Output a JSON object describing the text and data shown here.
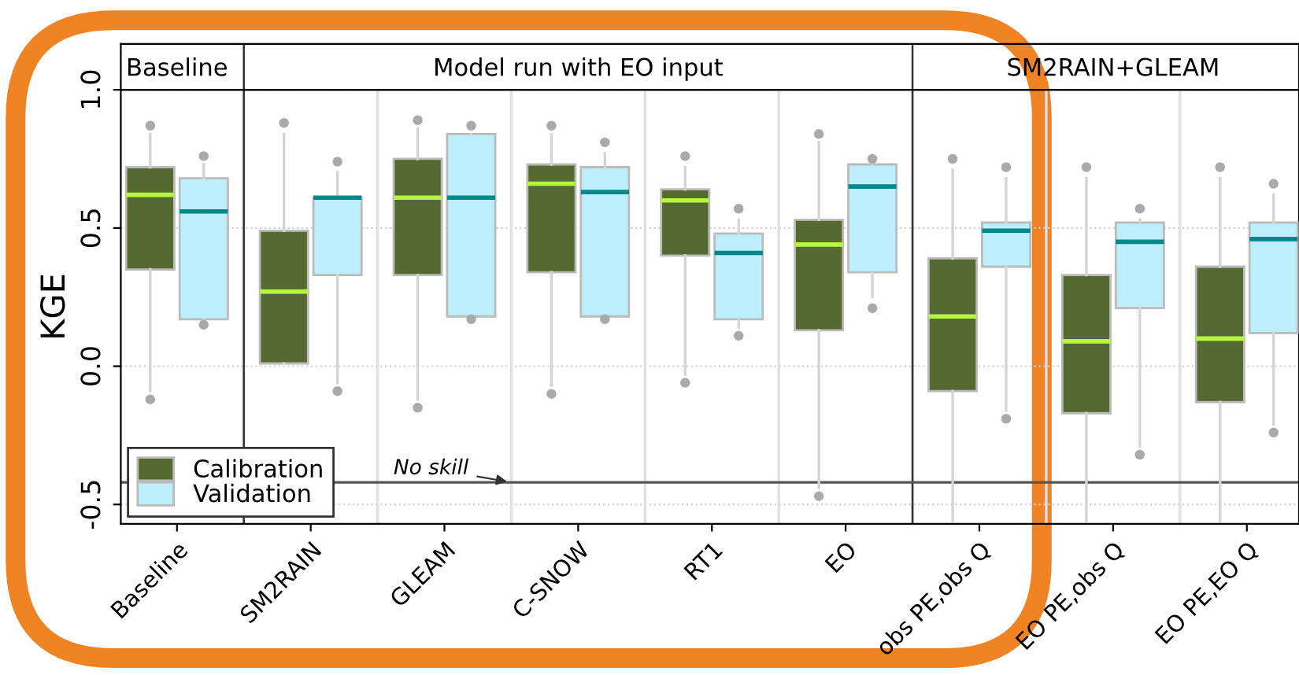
{
  "chart_data": {
    "type": "box",
    "ylabel": "KGE",
    "categories": [
      "Baseline",
      "SM2RAIN",
      "GLEAM",
      "C-SNOW",
      "RT1",
      "EO",
      "obs PE,obs Q",
      "EO PE,obs Q",
      "EO PE,EO Q"
    ],
    "series": [
      {
        "name": "Calibration",
        "color": "#546a30",
        "boxes": [
          {
            "low": -0.09,
            "q1": 0.35,
            "median": 0.62,
            "q3": 0.72,
            "high": 0.84,
            "outliers": [
              -0.12,
              0.87
            ]
          },
          {
            "low": null,
            "q1": 0.01,
            "median": 0.27,
            "q3": 0.49,
            "high": 0.84,
            "outliers": [
              0.88
            ]
          },
          {
            "low": -0.12,
            "q1": 0.33,
            "median": 0.61,
            "q3": 0.75,
            "high": 0.86,
            "outliers": [
              -0.15,
              0.89
            ]
          },
          {
            "low": -0.07,
            "q1": 0.34,
            "median": 0.66,
            "q3": 0.73,
            "high": 0.84,
            "outliers": [
              -0.1,
              0.87
            ]
          },
          {
            "low": -0.03,
            "q1": 0.4,
            "median": 0.6,
            "q3": 0.64,
            "high": 0.72,
            "outliers": [
              -0.06,
              0.76
            ]
          },
          {
            "low": -0.44,
            "q1": 0.13,
            "median": 0.44,
            "q3": 0.53,
            "high": 0.81,
            "outliers": [
              -0.47,
              0.84
            ]
          },
          {
            "low": -0.56,
            "q1": -0.09,
            "median": 0.18,
            "q3": 0.39,
            "high": 0.71,
            "outliers": [
              0.75
            ]
          },
          {
            "low": -0.56,
            "q1": -0.17,
            "median": 0.09,
            "q3": 0.33,
            "high": 0.68,
            "outliers": [
              0.72
            ]
          },
          {
            "low": -0.56,
            "q1": -0.13,
            "median": 0.1,
            "q3": 0.36,
            "high": 0.68,
            "outliers": [
              0.72
            ]
          }
        ]
      },
      {
        "name": "Validation",
        "color": "#bdeefb",
        "boxes": [
          {
            "low": 0.17,
            "q1": 0.17,
            "median": 0.56,
            "q3": 0.68,
            "high": 0.73,
            "outliers": [
              0.15,
              0.76
            ]
          },
          {
            "low": -0.06,
            "q1": 0.33,
            "median": 0.61,
            "q3": 0.61,
            "high": 0.7,
            "outliers": [
              -0.09,
              0.74
            ]
          },
          {
            "low": 0.18,
            "q1": 0.18,
            "median": 0.61,
            "q3": 0.84,
            "high": 0.84,
            "outliers": [
              0.17,
              0.87
            ]
          },
          {
            "low": 0.18,
            "q1": 0.18,
            "median": 0.63,
            "q3": 0.72,
            "high": 0.77,
            "outliers": [
              0.17,
              0.81
            ]
          },
          {
            "low": 0.14,
            "q1": 0.17,
            "median": 0.41,
            "q3": 0.48,
            "high": 0.53,
            "outliers": [
              0.11,
              0.57
            ]
          },
          {
            "low": 0.25,
            "q1": 0.34,
            "median": 0.65,
            "q3": 0.73,
            "high": 0.73,
            "outliers": [
              0.21,
              0.75
            ]
          },
          {
            "low": -0.16,
            "q1": 0.36,
            "median": 0.49,
            "q3": 0.52,
            "high": 0.68,
            "outliers": [
              -0.19,
              0.72
            ]
          },
          {
            "low": -0.29,
            "q1": 0.21,
            "median": 0.45,
            "q3": 0.52,
            "high": 0.53,
            "outliers": [
              -0.32,
              0.57
            ]
          },
          {
            "low": -0.21,
            "q1": 0.12,
            "median": 0.46,
            "q3": 0.52,
            "high": 0.62,
            "outliers": [
              -0.24,
              0.66
            ]
          }
        ]
      }
    ],
    "ylim": [
      -0.57,
      1.0
    ],
    "yticks": [
      {
        "value": -0.5,
        "label": "-0.5"
      },
      {
        "value": 0.0,
        "label": "0.0"
      },
      {
        "value": 0.5,
        "label": "0.5"
      },
      {
        "value": 1.0,
        "label": "1.0"
      }
    ],
    "grid": "y",
    "legend": "bottom left",
    "ref_lines": [
      {
        "axis": "y",
        "value": -0.42,
        "label": "No skill",
        "color": "#555555"
      }
    ],
    "annotations": [
      "Baseline",
      "Model run with EO input",
      "SM2RAIN+GLEAM"
    ]
  }
}
